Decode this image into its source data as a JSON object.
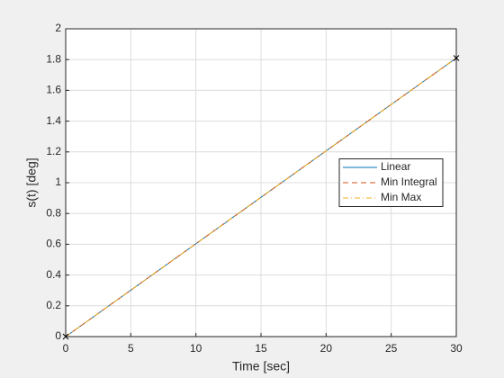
{
  "chart_data": {
    "type": "line",
    "x": [
      0,
      30
    ],
    "series": [
      {
        "name": "Linear",
        "color": "#0072bd",
        "dash": "solid",
        "values": [
          0,
          1.81
        ]
      },
      {
        "name": "Min Integral",
        "color": "#d95319",
        "dash": "dashed",
        "values": [
          0,
          1.81
        ]
      },
      {
        "name": "Min Max",
        "color": "#edb120",
        "dash": "dashdot",
        "values": [
          0,
          1.81
        ]
      }
    ],
    "waypoints": {
      "x": [
        0,
        30
      ],
      "y": [
        0,
        1.81
      ],
      "color": "#000000"
    },
    "xlabel": "Time [sec]",
    "ylabel": "s(t) [deg]",
    "xlim": [
      0,
      30
    ],
    "ylim": [
      0,
      2
    ],
    "xticks": [
      0,
      5,
      10,
      15,
      20,
      25,
      30
    ],
    "yticks": [
      0,
      0.2,
      0.4,
      0.6,
      0.8,
      1,
      1.2,
      1.4,
      1.6,
      1.8,
      2
    ],
    "grid": true,
    "legend": "east"
  }
}
